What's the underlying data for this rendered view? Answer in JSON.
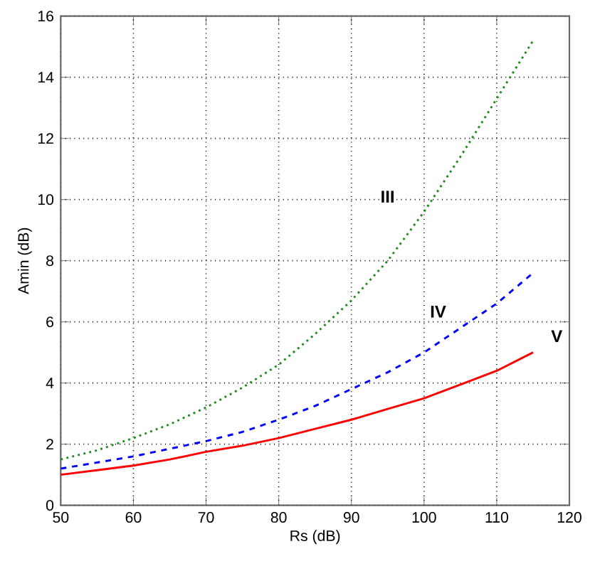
{
  "chart_data": {
    "type": "line",
    "xlabel": "Rs (dB)",
    "ylabel": "Amin (dB)",
    "xlim": [
      50,
      120
    ],
    "xticks": [
      50,
      60,
      70,
      80,
      90,
      100,
      110,
      120
    ],
    "ylim": [
      0,
      16
    ],
    "yticks": [
      0,
      2,
      4,
      6,
      8,
      10,
      12,
      14,
      16
    ],
    "grid": true,
    "marker": "none",
    "x": [
      50,
      55,
      60,
      65,
      70,
      75,
      80,
      85,
      90,
      95,
      100,
      105,
      110,
      115
    ],
    "series": [
      {
        "name": "III",
        "color": "#228b22",
        "line_style": "dotted",
        "values": [
          1.5,
          1.8,
          2.2,
          2.65,
          3.2,
          3.85,
          4.6,
          5.6,
          6.7,
          8.0,
          9.6,
          11.4,
          13.3,
          15.2
        ]
      },
      {
        "name": "IV",
        "color": "#0000ff",
        "line_style": "dashed",
        "values": [
          1.2,
          1.4,
          1.6,
          1.85,
          2.1,
          2.4,
          2.8,
          3.25,
          3.8,
          4.35,
          5.0,
          5.8,
          6.6,
          7.6
        ]
      },
      {
        "name": "V",
        "color": "#ff0000",
        "line_style": "solid",
        "values": [
          1.0,
          1.15,
          1.3,
          1.5,
          1.75,
          1.95,
          2.2,
          2.5,
          2.8,
          3.15,
          3.5,
          3.95,
          4.4,
          5.0
        ]
      }
    ]
  }
}
